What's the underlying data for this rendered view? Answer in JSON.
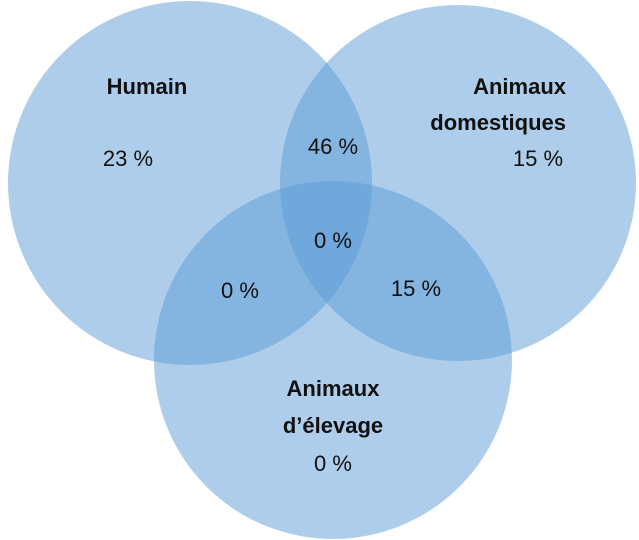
{
  "sets": [
    {
      "label": [
        "Humain"
      ],
      "value": "23 %"
    },
    {
      "label": [
        "Animaux",
        "domestiques"
      ],
      "value": "15 %"
    },
    {
      "label": [
        "Animaux",
        "d’élevage"
      ],
      "value": "0 %"
    }
  ],
  "overlaps": {
    "humain_domestiques": "46 %",
    "humain_elevage": "0 %",
    "domestiques_elevage": "15 %",
    "all": "0 %"
  }
}
